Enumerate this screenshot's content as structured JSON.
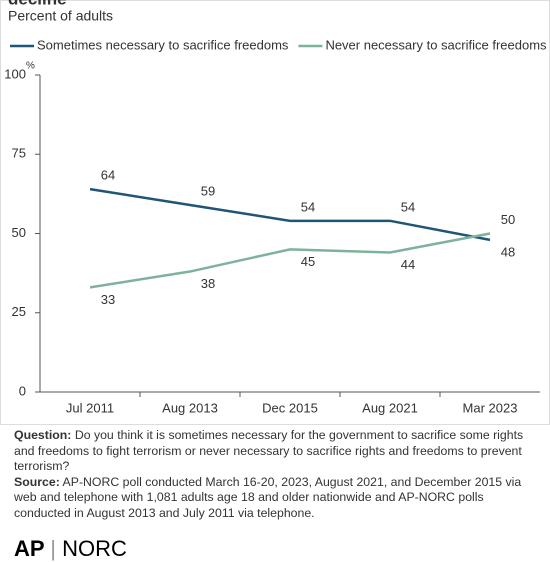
{
  "chart_data": {
    "type": "line",
    "title": "decline",
    "subtitle": "Percent of adults",
    "categories": [
      "Jul 2011",
      "Aug 2013",
      "Dec 2015",
      "Aug 2021",
      "Mar 2023"
    ],
    "series": [
      {
        "name": "Sometimes necessary to sacrifice freedoms",
        "color": "#1f5576",
        "values": [
          64,
          59,
          54,
          54,
          48
        ]
      },
      {
        "name": "Never necessary to sacrifice freedoms",
        "color": "#7fb29b",
        "values": [
          33,
          38,
          45,
          44,
          50
        ]
      }
    ],
    "ylim": [
      0,
      100
    ],
    "yticks": [
      0,
      25,
      50,
      75,
      100
    ],
    "y_unit": "%",
    "grid": false
  },
  "notes": {
    "question_label": "Question:",
    "question": "Do you think it is sometimes necessary for the government to sacrifice some rights and freedoms to fight terrorism or never necessary to sacrifice rights and freedoms to prevent terrorism?",
    "source_label": "Source:",
    "source": "AP-NORC poll conducted March 16-20, 2023, August 2021, and December 2015 via web and telephone with 1,081 adults age 18 and older nationwide and AP-NORC polls conducted in August 2013 and July 2011 via telephone."
  },
  "logos": {
    "ap": "AP",
    "norc": "NORC"
  }
}
